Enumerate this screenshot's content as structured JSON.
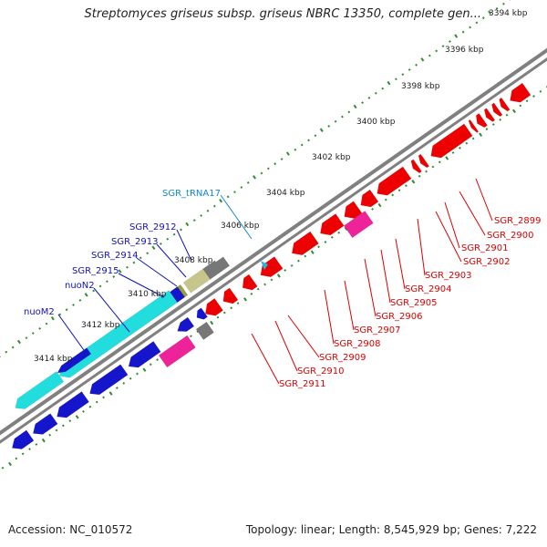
{
  "header": {
    "title": "Streptomyces griseus subsp. griseus NBRC 13350, complete gen..."
  },
  "footer": {
    "accession": "Accession: NC_010572",
    "summary": "Topology: linear; Length: 8,545,929 bp; Genes: 7,222"
  },
  "scale": {
    "ticks": [
      {
        "label": "3394 kbp"
      },
      {
        "label": "3396 kbp"
      },
      {
        "label": "3398 kbp"
      },
      {
        "label": "3400 kbp"
      },
      {
        "label": "3402 kbp"
      },
      {
        "label": "3404 kbp"
      },
      {
        "label": "3406 kbp"
      },
      {
        "label": "3408 kbp"
      },
      {
        "label": "3410 kbp"
      },
      {
        "label": "3412 kbp"
      },
      {
        "label": "3414 kbp"
      }
    ]
  },
  "colors": {
    "backbone": "#808080",
    "tick_green": "#2e8b2e",
    "gene_red": "#ee0000",
    "gene_blue": "#1515cc",
    "gene_cyan": "#22dddd",
    "gene_gray": "#777777",
    "gene_olive": "#9aa035",
    "gene_khaki": "#c8c58a",
    "gene_magenta": "#ee2299",
    "trna_cyan": "#22bbdd",
    "label_red": "#dd0000",
    "label_blue": "#1111bb",
    "label_cyan": "#1188cc"
  },
  "genes": {
    "top_labels": [
      {
        "name": "SGR_tRNA17",
        "color": "cyan"
      },
      {
        "name": "SGR_2912",
        "color": "blue"
      },
      {
        "name": "SGR_2913",
        "color": "blue"
      },
      {
        "name": "SGR_2914",
        "color": "blue"
      },
      {
        "name": "SGR_2915",
        "color": "blue"
      },
      {
        "name": "nuoN2",
        "color": "blue"
      },
      {
        "name": "nuoM2",
        "color": "blue"
      }
    ],
    "bottom_labels": [
      {
        "name": "SGR_2899"
      },
      {
        "name": "SGR_2900"
      },
      {
        "name": "SGR_2901"
      },
      {
        "name": "SGR_2902"
      },
      {
        "name": "SGR_2903"
      },
      {
        "name": "SGR_2904"
      },
      {
        "name": "SGR_2905"
      },
      {
        "name": "SGR_2906"
      },
      {
        "name": "SGR_2907"
      },
      {
        "name": "SGR_2908"
      },
      {
        "name": "SGR_2909"
      },
      {
        "name": "SGR_2910"
      },
      {
        "name": "SGR_2911"
      }
    ]
  }
}
